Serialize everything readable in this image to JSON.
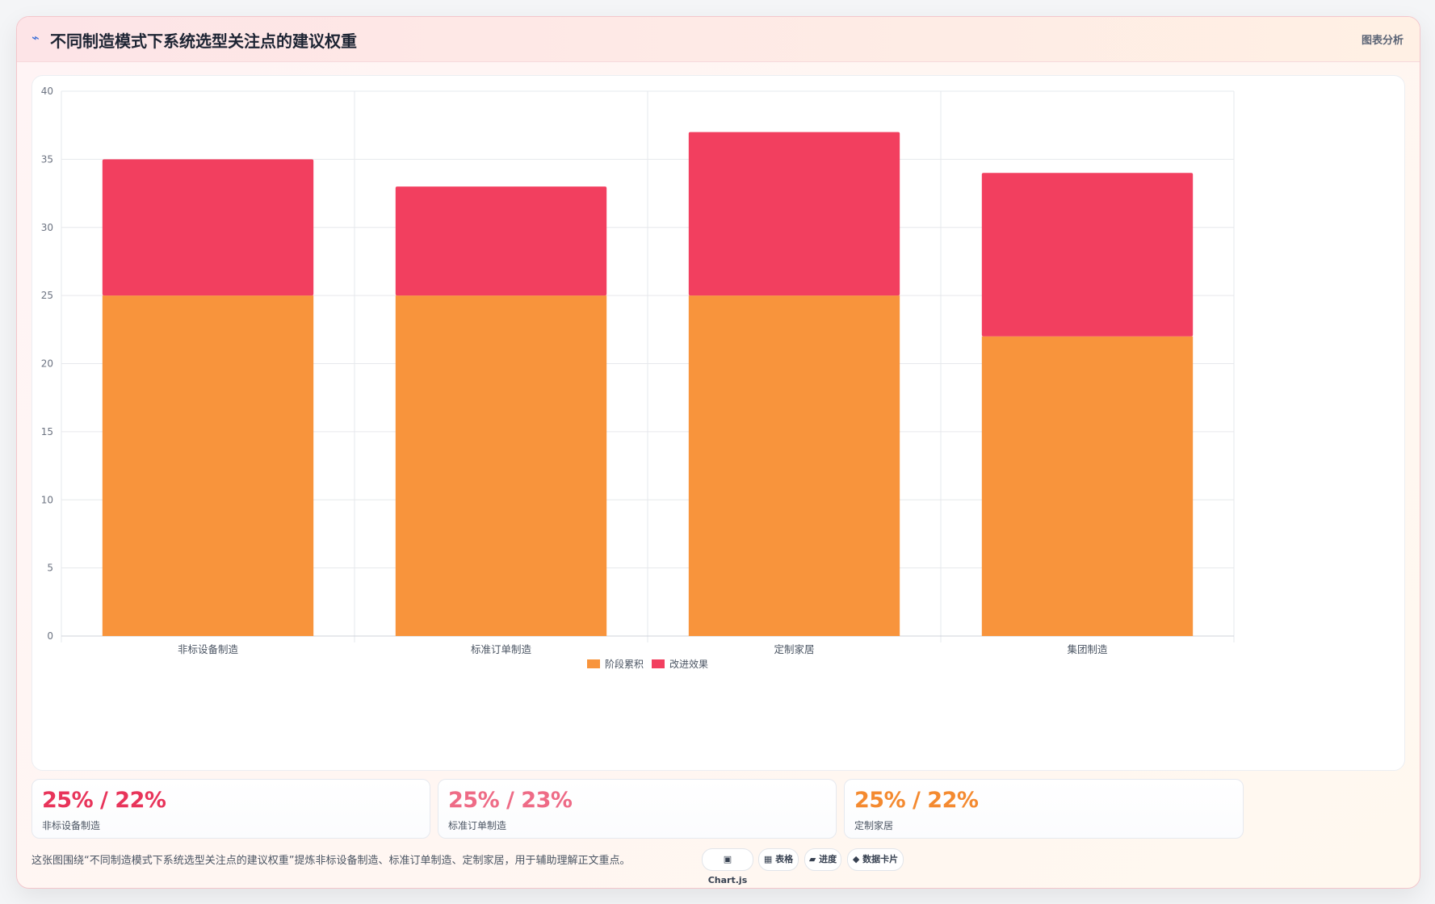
{
  "header": {
    "icon": "lightning-icon",
    "title": "不同制造模式下系统选型关注点的建议权重",
    "action_label": "图表分析"
  },
  "chart_data": {
    "type": "bar",
    "stacked": true,
    "categories": [
      "非标设备制造",
      "标准订单制造",
      "定制家居",
      "集团制造"
    ],
    "series": [
      {
        "name": "阶段累积",
        "values": [
          25,
          25,
          25,
          22
        ],
        "color": "#f8943c"
      },
      {
        "name": "改进效果",
        "values": [
          10,
          8,
          12,
          12
        ],
        "color": "#f23f5f"
      }
    ],
    "ylim": [
      0,
      40
    ],
    "yticks": [
      0,
      5,
      10,
      15,
      20,
      25,
      30,
      35,
      40
    ],
    "grid": true,
    "legend_position": "bottom"
  },
  "stats": [
    {
      "value": "25% / 22%",
      "label": "非标设备制造",
      "color": "#e8345a"
    },
    {
      "value": "25% / 23%",
      "label": "标准订单制造",
      "color": "#ee6b86"
    },
    {
      "value": "25% / 22%",
      "label": "定制家居",
      "color": "#f48a30"
    }
  ],
  "footer": {
    "text": "这张图围绕“不同制造模式下系统选型关注点的建议权重”提炼非标设备制造、标准订单制造、定制家居，用于辅助理解正文重点。",
    "tags": [
      "▣ Chart.js",
      "▦ 表格",
      "▰ 进度",
      "◆ 数据卡片"
    ]
  }
}
